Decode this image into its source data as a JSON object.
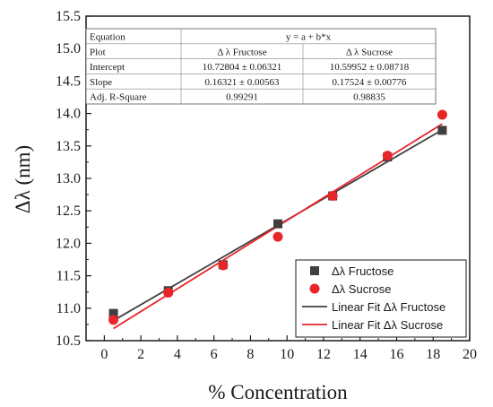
{
  "chart_data": {
    "type": "scatter",
    "title": "",
    "xlabel": "% Concentration",
    "ylabel": "Δλ (nm)",
    "xlim": [
      -1,
      20
    ],
    "ylim": [
      10.5,
      15.5
    ],
    "xticks": [
      "0",
      "2",
      "4",
      "6",
      "8",
      "10",
      "12",
      "14",
      "16",
      "18",
      "20"
    ],
    "yticks": [
      "10.5",
      "11.0",
      "11.5",
      "12.0",
      "12.5",
      "13.0",
      "13.5",
      "14.0",
      "14.5",
      "15.0",
      "15.5"
    ],
    "legend_position": "bottom-right",
    "series": [
      {
        "name": "Δλ Fructose",
        "marker": "square",
        "color": "#3f3f3f",
        "x": [
          0.5,
          3.5,
          6.5,
          9.5,
          12.5,
          15.5,
          18.5
        ],
        "y": [
          10.92,
          11.27,
          11.67,
          12.3,
          12.73,
          13.33,
          13.74
        ]
      },
      {
        "name": "Δλ Sucrose",
        "marker": "circle",
        "color": "#e8262a",
        "x": [
          0.5,
          3.5,
          6.5,
          9.5,
          12.5,
          15.5,
          18.5
        ],
        "y": [
          10.82,
          11.24,
          11.66,
          12.1,
          12.73,
          13.35,
          13.98
        ]
      }
    ],
    "fits": [
      {
        "name": "Linear Fit Δλ Fructose",
        "color": "#3f3f3f",
        "intercept": 10.72804,
        "slope": 0.16321,
        "x_range": [
          0.5,
          18.5
        ]
      },
      {
        "name": "Linear Fit Δλ Sucrose",
        "color": "#e8262a",
        "intercept": 10.59952,
        "slope": 0.17524,
        "x_range": [
          0.5,
          18.5
        ]
      }
    ],
    "fit_table": {
      "rows": [
        [
          "Equation",
          "y = a + b*x",
          ""
        ],
        [
          "Plot",
          "Δ λ Fructose",
          "Δ λ Sucrose"
        ],
        [
          "Intercept",
          "10.72804 ± 0.06321",
          "10.59952 ± 0.08718"
        ],
        [
          "Slope",
          "0.16321 ± 0.00563",
          "0.17524 ± 0.00776"
        ],
        [
          "Adj. R-Square",
          "0.99291",
          "0.98835"
        ]
      ]
    }
  }
}
